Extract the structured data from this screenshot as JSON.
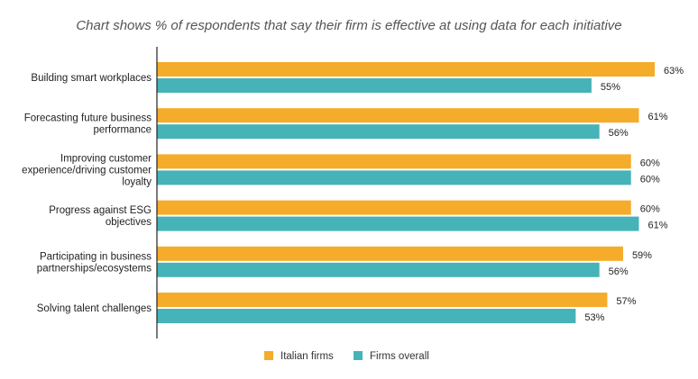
{
  "chart_data": {
    "type": "bar",
    "orientation": "horizontal",
    "title": "Chart shows % of respondents that say their firm is effective at using data for each initiative",
    "categories": [
      "Building smart workplaces",
      "Forecasting future business performance",
      "Improving customer experience/driving customer loyalty",
      "Progress against ESG objectives",
      "Participating in business partnerships/ecosystems",
      "Solving talent challenges"
    ],
    "category_lines": [
      [
        "Building smart workplaces"
      ],
      [
        "Forecasting future business",
        "performance"
      ],
      [
        "Improving customer",
        "experience/driving customer",
        "loyalty"
      ],
      [
        "Progress against ESG",
        "objectives"
      ],
      [
        "Participating in business",
        "partnerships/ecosystems"
      ],
      [
        "Solving talent challenges"
      ]
    ],
    "series": [
      {
        "name": "Italian firms",
        "color": "#F5AC2A",
        "values": [
          63,
          61,
          60,
          60,
          59,
          57
        ]
      },
      {
        "name": "Firms overall",
        "color": "#45B3B8",
        "values": [
          55,
          56,
          60,
          61,
          56,
          53
        ]
      }
    ],
    "value_suffix": "%",
    "xlim": [
      0,
      63
    ],
    "grid": false,
    "legend_position": "bottom"
  }
}
